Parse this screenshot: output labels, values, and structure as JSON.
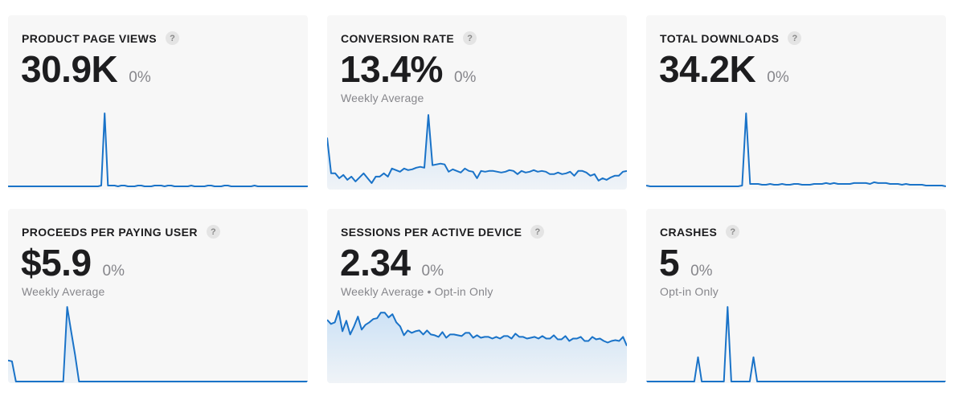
{
  "colors": {
    "line": "#1a73c8",
    "fill_top": "#c7dff6",
    "card_bg": "#f7f7f7"
  },
  "cards": [
    {
      "title": "PRODUCT PAGE VIEWS",
      "help": "?",
      "value": "30.9K",
      "delta": "0%",
      "subtitle": "",
      "sub_extra": "",
      "chart_data": {
        "type": "line",
        "fill": false,
        "ylim": [
          0,
          100
        ],
        "values": [
          2,
          2,
          2,
          2,
          2,
          2,
          2,
          2,
          2,
          2,
          2,
          2,
          2,
          2,
          2,
          2,
          2,
          2,
          2,
          2,
          2,
          2,
          2,
          2,
          2,
          2,
          2,
          2,
          3,
          92,
          3,
          3,
          3,
          2,
          3,
          3,
          2,
          2,
          2,
          3,
          3,
          2,
          2,
          2,
          3,
          3,
          3,
          2,
          3,
          3,
          2,
          2,
          2,
          2,
          2,
          3,
          2,
          2,
          2,
          2,
          3,
          3,
          2,
          2,
          2,
          3,
          3,
          2,
          2,
          2,
          2,
          2,
          2,
          2,
          3,
          2,
          2,
          2,
          2,
          2,
          2,
          2,
          2,
          2,
          2,
          2,
          2,
          2,
          2,
          2,
          2
        ]
      }
    },
    {
      "title": "CONVERSION RATE",
      "help": "?",
      "value": "13.4%",
      "delta": "0%",
      "subtitle": "Weekly Average",
      "sub_extra": "",
      "chart_data": {
        "type": "area",
        "fill": true,
        "ylim": [
          0,
          100
        ],
        "values": [
          62,
          18,
          18,
          12,
          16,
          10,
          14,
          8,
          13,
          18,
          12,
          6,
          14,
          14,
          18,
          14,
          24,
          22,
          20,
          24,
          22,
          23,
          25,
          26,
          25,
          90,
          28,
          29,
          30,
          29,
          20,
          23,
          21,
          19,
          24,
          21,
          20,
          12,
          21,
          20,
          21,
          21,
          20,
          19,
          20,
          22,
          21,
          17,
          21,
          19,
          20,
          22,
          20,
          21,
          20,
          17,
          17,
          19,
          17,
          18,
          20,
          15,
          21,
          21,
          19,
          15,
          17,
          9,
          12,
          10,
          13,
          15,
          15,
          20,
          21
        ]
      }
    },
    {
      "title": "TOTAL DOWNLOADS",
      "help": "?",
      "value": "34.2K",
      "delta": "0%",
      "subtitle": "",
      "sub_extra": "",
      "chart_data": {
        "type": "line",
        "fill": false,
        "ylim": [
          0,
          100
        ],
        "values": [
          3,
          2,
          2,
          2,
          2,
          2,
          2,
          2,
          2,
          2,
          2,
          2,
          2,
          2,
          2,
          2,
          2,
          2,
          2,
          2,
          2,
          2,
          2,
          2,
          3,
          92,
          5,
          5,
          5,
          4,
          4,
          5,
          4,
          4,
          5,
          4,
          4,
          5,
          5,
          4,
          4,
          4,
          5,
          5,
          5,
          6,
          5,
          6,
          5,
          5,
          5,
          5,
          6,
          6,
          6,
          6,
          5,
          7,
          6,
          6,
          6,
          5,
          5,
          5,
          4,
          5,
          4,
          4,
          4,
          4,
          3,
          3,
          3,
          3,
          3,
          2
        ]
      }
    },
    {
      "title": "PROCEEDS PER PAYING USER",
      "help": "?",
      "value": "$5.9",
      "delta": "0%",
      "subtitle": "Weekly Average",
      "sub_extra": "",
      "chart_data": {
        "type": "area",
        "fill": true,
        "ylim": [
          0,
          100
        ],
        "values": [
          26,
          25,
          0,
          0,
          0,
          0,
          0,
          0,
          0,
          0,
          0,
          0,
          0,
          0,
          0,
          92,
          62,
          33,
          0,
          0,
          0,
          0,
          0,
          0,
          0,
          0,
          0,
          0,
          0,
          0,
          0,
          0,
          0,
          0,
          0,
          0,
          0,
          0,
          0,
          0,
          0,
          0,
          0,
          0,
          0,
          0,
          0,
          0,
          0,
          0,
          0,
          0,
          0,
          0,
          0,
          0,
          0,
          0,
          0,
          0,
          0,
          0,
          0,
          0,
          0,
          0,
          0,
          0,
          0,
          0,
          0,
          0,
          0,
          0,
          0,
          0,
          0
        ]
      }
    },
    {
      "title": "SESSIONS PER ACTIVE DEVICE",
      "help": "?",
      "value": "2.34",
      "delta": "0%",
      "subtitle": "Weekly Average",
      "sub_extra": "Opt-in Only",
      "chart_data": {
        "type": "area",
        "fill": true,
        "ylim": [
          0,
          100
        ],
        "values": [
          76,
          71,
          73,
          87,
          62,
          75,
          58,
          68,
          80,
          64,
          70,
          73,
          77,
          78,
          85,
          85,
          79,
          83,
          73,
          68,
          57,
          63,
          60,
          62,
          63,
          58,
          63,
          58,
          57,
          55,
          61,
          54,
          58,
          58,
          57,
          56,
          60,
          60,
          54,
          57,
          54,
          55,
          55,
          53,
          55,
          53,
          56,
          56,
          53,
          59,
          55,
          55,
          53,
          54,
          55,
          53,
          56,
          53,
          53,
          57,
          52,
          52,
          56,
          50,
          53,
          53,
          55,
          50,
          50,
          55,
          52,
          53,
          50,
          48,
          50,
          51,
          50,
          55,
          44
        ]
      }
    },
    {
      "title": "CRASHES",
      "help": "?",
      "value": "5",
      "delta": "0%",
      "subtitle": "Opt-in Only",
      "sub_extra": "",
      "chart_data": {
        "type": "line",
        "fill": false,
        "ylim": [
          0,
          100
        ],
        "values": [
          0,
          0,
          0,
          0,
          0,
          0,
          0,
          0,
          0,
          0,
          0,
          0,
          0,
          0,
          30,
          0,
          0,
          0,
          0,
          0,
          0,
          0,
          92,
          0,
          0,
          0,
          0,
          0,
          0,
          30,
          0,
          0,
          0,
          0,
          0,
          0,
          0,
          0,
          0,
          0,
          0,
          0,
          0,
          0,
          0,
          0,
          0,
          0,
          0,
          0,
          0,
          0,
          0,
          0,
          0,
          0,
          0,
          0,
          0,
          0,
          0,
          0,
          0,
          0,
          0,
          0,
          0,
          0,
          0,
          0,
          0,
          0,
          0,
          0,
          0,
          0,
          0,
          0,
          0,
          0,
          0,
          0
        ]
      }
    }
  ]
}
